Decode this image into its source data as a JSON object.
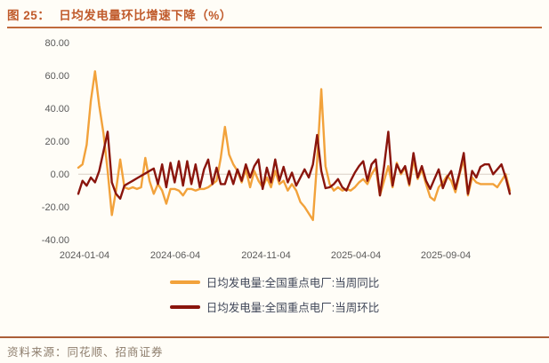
{
  "title": {
    "prefix": "图 25：",
    "text": "日均发电量环比增速下降（%）"
  },
  "source": {
    "prefix": "资料来源：",
    "text": "同花顺、招商证券"
  },
  "colors": {
    "title_accent": "#C05A2B",
    "rule": "#AB5F38",
    "axis_text": "#595959",
    "legend_text": "#3F4658",
    "series_yoy": "#F2A23B",
    "series_wow": "#8A150D",
    "zero_line": "#D9D0C5",
    "background": "#FFFDF7"
  },
  "chart_data": {
    "type": "line",
    "title": "日均发电量环比增速下降（%）",
    "xlabel": "",
    "ylabel": "",
    "ylim": [
      -40,
      80
    ],
    "grid": "zero-line-only",
    "legend_position": "bottom",
    "y_ticks": [
      "80.00",
      "60.00",
      "40.00",
      "20.00",
      "0.00",
      "-20.00",
      "-40.00"
    ],
    "x_ticks": [
      "2024-01-04",
      "2024-06-04",
      "2024-11-04",
      "2025-04-04",
      "2025-09-04"
    ],
    "x_unit": "week",
    "zero_line_color": "#D9D0C5",
    "series": [
      {
        "name": "日均发电量:全国重点电厂:当周同比",
        "color": "#F2A23B",
        "values": [
          4,
          6,
          18,
          45,
          63,
          42,
          25,
          2,
          -25,
          -10,
          9,
          -8,
          -9,
          -8,
          -9,
          -8,
          10,
          -4,
          -12,
          -6,
          -10,
          -18,
          -9,
          -9,
          -10,
          -13,
          -9,
          -9,
          -10,
          -9,
          -9,
          -8,
          -6,
          -4,
          10,
          29,
          12,
          6,
          2,
          -5,
          3,
          -8,
          2,
          -4,
          -8,
          -2,
          -8,
          2,
          -6,
          -4,
          -10,
          -6,
          -10,
          -17,
          -20,
          -24,
          -28,
          8,
          52,
          5,
          -6,
          -10,
          -8,
          -10,
          -9,
          -10,
          -8,
          -5,
          -3,
          -6,
          0,
          4,
          -13,
          -4,
          5,
          -8,
          7,
          0,
          4,
          -7,
          9,
          -3,
          3,
          -6,
          -14,
          -16,
          -8,
          -5,
          -1,
          -4,
          -11,
          0,
          9,
          -13,
          -2,
          -5,
          -6,
          -6,
          -6,
          -6,
          -8,
          -4,
          0,
          -10
        ]
      },
      {
        "name": "日均发电量:全国重点电厂:当周环比",
        "color": "#8A150D",
        "values": [
          -12,
          -4,
          -7,
          -2,
          -5,
          2,
          14,
          26,
          -5,
          -12,
          -15,
          -7,
          -5.5,
          -4,
          -2.5,
          -1,
          0.5,
          2,
          3.5,
          -6,
          6,
          -8,
          7,
          -5,
          8,
          -7,
          8,
          -6,
          6,
          -8,
          3,
          9,
          -6,
          4,
          -6,
          -6,
          2,
          -6,
          3,
          -4,
          6,
          -2,
          5,
          9,
          -9,
          4,
          -5,
          9,
          -4,
          4.5,
          -5,
          1,
          -7,
          -2,
          3,
          -2,
          6,
          24,
          2,
          -8.5,
          -8,
          -6,
          -3,
          -8,
          -10,
          -4,
          1,
          5,
          8,
          -4,
          6,
          9,
          -13,
          5,
          26,
          -7,
          6,
          1,
          5,
          -6,
          13,
          -2,
          5,
          -4,
          -9,
          -3,
          3,
          -8.5,
          -2,
          2,
          -9,
          1,
          13,
          -12,
          2,
          -2,
          4.5,
          6,
          6,
          0,
          3,
          6,
          -2,
          -12
        ]
      }
    ]
  }
}
